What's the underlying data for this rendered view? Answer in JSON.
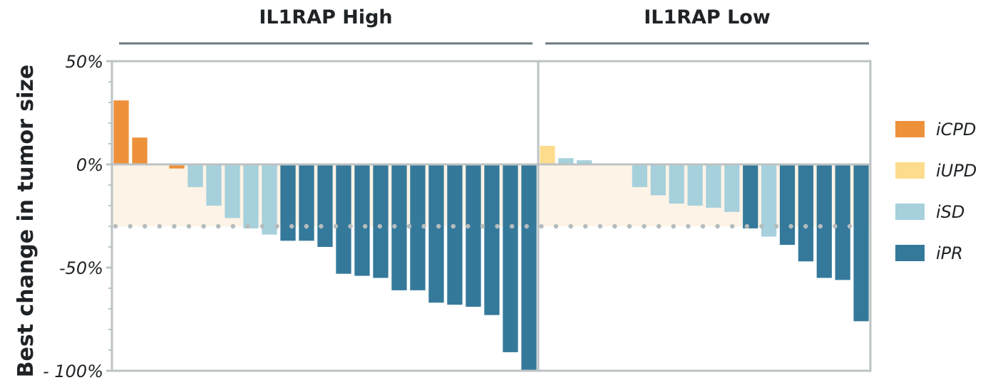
{
  "chart_data": {
    "type": "bar",
    "ylabel": "Best change in tumor size",
    "ylim": [
      -100,
      50
    ],
    "yticks": [
      {
        "value": 50,
        "label": "50%"
      },
      {
        "value": 0,
        "label": "0%"
      },
      {
        "value": -50,
        "label": "-50%"
      },
      {
        "value": -100,
        "label": "- 100%"
      }
    ],
    "threshold": -30,
    "grid": false,
    "legend_position": "right",
    "categories_legend": [
      {
        "key": "iCPD",
        "label": "iCPD",
        "color": "#ee913b"
      },
      {
        "key": "iUPD",
        "label": "iUPD",
        "color": "#fddc8d"
      },
      {
        "key": "iSD",
        "label": "iSD",
        "color": "#a6d0dc"
      },
      {
        "key": "iPR",
        "label": "iPR",
        "color": "#35799a"
      }
    ],
    "panels": [
      {
        "title": "IL1RAP High",
        "bars": [
          {
            "value": 31,
            "cat": "iCPD"
          },
          {
            "value": 13,
            "cat": "iCPD"
          },
          {
            "value": 0,
            "cat": "iCPD"
          },
          {
            "value": -2,
            "cat": "iCPD"
          },
          {
            "value": -11,
            "cat": "iSD"
          },
          {
            "value": -20,
            "cat": "iSD"
          },
          {
            "value": -26,
            "cat": "iSD"
          },
          {
            "value": -31,
            "cat": "iSD"
          },
          {
            "value": -34,
            "cat": "iSD"
          },
          {
            "value": -37,
            "cat": "iPR"
          },
          {
            "value": -37,
            "cat": "iPR"
          },
          {
            "value": -40,
            "cat": "iPR"
          },
          {
            "value": -53,
            "cat": "iPR"
          },
          {
            "value": -54,
            "cat": "iPR"
          },
          {
            "value": -55,
            "cat": "iPR"
          },
          {
            "value": -61,
            "cat": "iPR"
          },
          {
            "value": -61,
            "cat": "iPR"
          },
          {
            "value": -67,
            "cat": "iPR"
          },
          {
            "value": -68,
            "cat": "iPR"
          },
          {
            "value": -69,
            "cat": "iPR"
          },
          {
            "value": -73,
            "cat": "iPR"
          },
          {
            "value": -91,
            "cat": "iPR"
          },
          {
            "value": -100,
            "cat": "iPR"
          }
        ]
      },
      {
        "title": "IL1RAP Low",
        "bars": [
          {
            "value": 9,
            "cat": "iUPD"
          },
          {
            "value": 3,
            "cat": "iSD"
          },
          {
            "value": 2,
            "cat": "iSD"
          },
          {
            "value": 0,
            "cat": "iSD"
          },
          {
            "value": 0,
            "cat": "iSD"
          },
          {
            "value": -11,
            "cat": "iSD"
          },
          {
            "value": -15,
            "cat": "iSD"
          },
          {
            "value": -19,
            "cat": "iSD"
          },
          {
            "value": -20,
            "cat": "iSD"
          },
          {
            "value": -21,
            "cat": "iSD"
          },
          {
            "value": -23,
            "cat": "iSD"
          },
          {
            "value": -31,
            "cat": "iPR"
          },
          {
            "value": -35,
            "cat": "iSD"
          },
          {
            "value": -39,
            "cat": "iPR"
          },
          {
            "value": -47,
            "cat": "iPR"
          },
          {
            "value": -55,
            "cat": "iPR"
          },
          {
            "value": -56,
            "cat": "iPR"
          },
          {
            "value": -76,
            "cat": "iPR"
          }
        ]
      }
    ]
  }
}
